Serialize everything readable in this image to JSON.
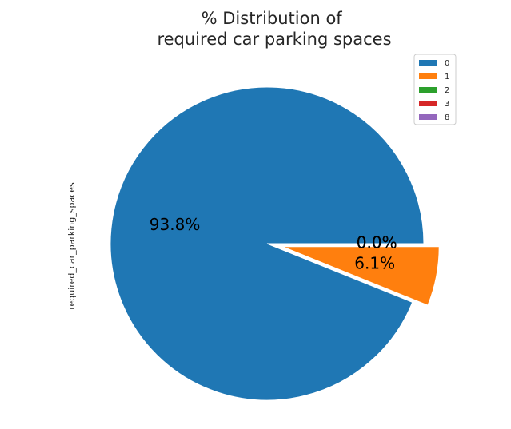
{
  "chart_data": {
    "type": "pie",
    "title": "% Distribution of\nrequired car parking spaces",
    "ylabel": "required_car_parking_spaces",
    "legend_placement": "top-right",
    "slices": [
      {
        "label": "0",
        "value": 93.8,
        "pct_label": "93.8%",
        "color": "#1f77b4",
        "explode": 0
      },
      {
        "label": "1",
        "value": 6.1,
        "pct_label": "6.1%",
        "color": "#ff7f0e",
        "explode": 0.1
      },
      {
        "label": "2",
        "value": 0.0,
        "pct_label": "0.0%",
        "color": "#2ca02c",
        "explode": 0.1
      },
      {
        "label": "3",
        "value": 0.0,
        "pct_label": "0.0%",
        "color": "#d62728",
        "explode": 0.1
      },
      {
        "label": "8",
        "value": 0.0,
        "pct_label": "0.0%",
        "color": "#9467bd",
        "explode": 0.1
      }
    ]
  }
}
